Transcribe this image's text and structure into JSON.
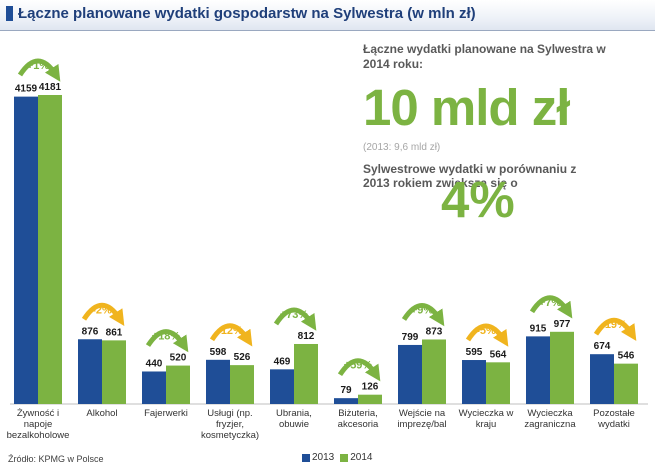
{
  "header": {
    "title": "Łączne planowane wydatki gospodarstw na Sylwestra (w mln zł)"
  },
  "summary": {
    "heading": "Łączne wydatki planowane na Sylwestra w 2014 roku:",
    "total": "10 mld zł",
    "previous": "(2013: 9,6 mld zł)",
    "growth_text": "Sylwestrowe wydatki w porównaniu z 2013 rokiem zwiększą się o",
    "growth_value": "4%"
  },
  "footer": {
    "source": "Źródło: KPMG w Polsce"
  },
  "colors": {
    "s2013": "#1f4e97",
    "s2014": "#7cb342",
    "up": "#7cb342",
    "down": "#f0b41e"
  },
  "chart_data": {
    "type": "bar",
    "title": "Łączne planowane wydatki gospodarstw na Sylwestra (w mln zł)",
    "categories": [
      [
        "Żywność i",
        "napoje",
        "bezalkoholowe"
      ],
      [
        "Alkohol"
      ],
      [
        "Fajerwerki"
      ],
      [
        "Usługi (np.",
        "fryzjer,",
        "kosmetyczka)"
      ],
      [
        "Ubrania,",
        "obuwie"
      ],
      [
        "Biżuteria,",
        "akcesoria"
      ],
      [
        "Wejście na",
        "imprezę/bal"
      ],
      [
        "Wycieczka w",
        "kraju"
      ],
      [
        "Wycieczka",
        "zagraniczna"
      ],
      [
        "Pozostałe",
        "wydatki"
      ]
    ],
    "series": [
      {
        "name": "2013",
        "values": [
          4159,
          876,
          440,
          598,
          469,
          79,
          799,
          595,
          915,
          674
        ]
      },
      {
        "name": "2014",
        "values": [
          4181,
          861,
          520,
          526,
          812,
          126,
          873,
          564,
          977,
          546
        ]
      }
    ],
    "changes": [
      "+1%",
      "-2%",
      "+18%",
      "-12%",
      "+73%",
      "+59%",
      "+9%",
      "-5%",
      "+7%",
      "-19%"
    ],
    "ylim": [
      0,
      4181
    ],
    "legend": [
      "2013",
      "2014"
    ],
    "legend_position": "bottom",
    "xlabel": "",
    "ylabel": ""
  }
}
